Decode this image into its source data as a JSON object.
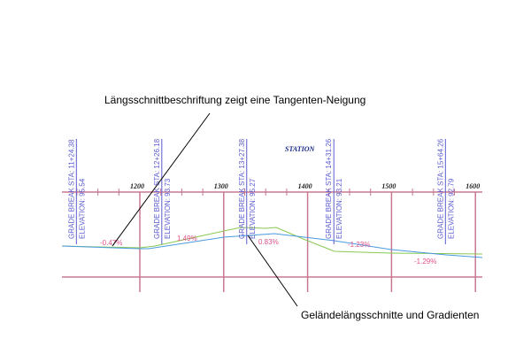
{
  "callouts": {
    "top": "Längsschnittbeschriftung zeigt eine Tangenten-Neigung",
    "bottom": "Geländelängsschnitte und Gradienten"
  },
  "axis_title": "STATION",
  "stations": [
    "1200",
    "1300",
    "1400",
    "1500",
    "1600"
  ],
  "station_values": [
    1200,
    1300,
    1400,
    1500,
    1600
  ],
  "grade_breaks": [
    {
      "sta": 1124.38,
      "label": "GRADE BREAK  STA:  11+24.38",
      "elev": "ELEVATION:  95.54"
    },
    {
      "sta": 1226.18,
      "label": "GRADE  BREAK  STA:  12+26.18",
      "elev": "ELEVATION:  93.73"
    },
    {
      "sta": 1327.38,
      "label": "GRADE  BREAK  STA:  13+27.38",
      "elev": "ELEVATION:  95.27"
    },
    {
      "sta": 1431.26,
      "label": "GRADE  BREAK  STA:  14+31.26",
      "elev": "ELEVATION:  93.21"
    },
    {
      "sta": 1564.26,
      "label": "GRADE  BREAK  STA:  15+64.26",
      "elev": "ELEVATION:  92.79"
    }
  ],
  "grades": [
    "-0.47%",
    "1.49%",
    "0.83%",
    "-1.23%",
    "-1.29%"
  ],
  "colors": {
    "grid": "#c87890",
    "profile_design": "#4a9ae0",
    "profile_ground": "#8ac850",
    "labels": "#5a5ad0",
    "grades": "#e0508a",
    "station": "#1a2a8a"
  }
}
